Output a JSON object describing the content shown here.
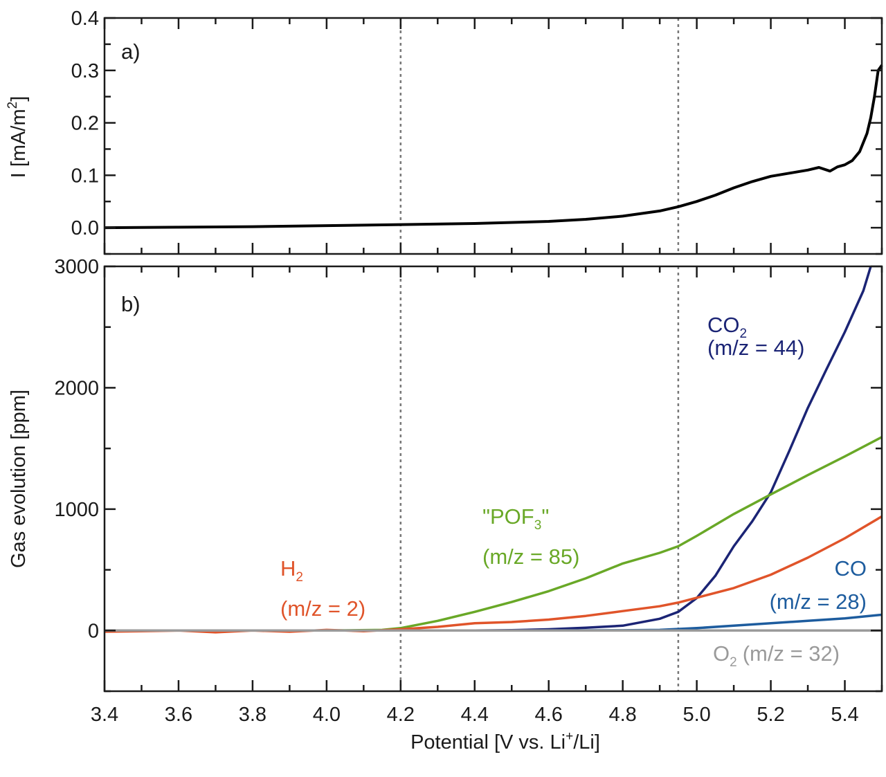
{
  "chart_data": [
    {
      "type": "line",
      "panel_label": "a)",
      "ylabel": "I [mA/m",
      "ylabel_sup": "2",
      "ylabel_end": "]",
      "xlim": [
        3.4,
        5.5
      ],
      "ylim": [
        -0.05,
        0.4
      ],
      "yticks": [
        "0.0",
        "0.1",
        "0.2",
        "0.3",
        "0.4"
      ],
      "ytick_values": [
        0,
        0.1,
        0.2,
        0.3,
        0.4
      ],
      "reference_lines_x": [
        4.2,
        4.95
      ],
      "series": [
        {
          "color": "#000000",
          "x": [
            3.4,
            3.6,
            3.8,
            4.0,
            4.2,
            4.4,
            4.6,
            4.7,
            4.8,
            4.9,
            4.95,
            5.0,
            5.05,
            5.1,
            5.15,
            5.2,
            5.25,
            5.3,
            5.33,
            5.36,
            5.38,
            5.4,
            5.42,
            5.44,
            5.46,
            5.47,
            5.48,
            5.49,
            5.5
          ],
          "y": [
            0.0,
            0.001,
            0.002,
            0.004,
            0.006,
            0.008,
            0.012,
            0.016,
            0.022,
            0.032,
            0.04,
            0.05,
            0.062,
            0.076,
            0.088,
            0.098,
            0.104,
            0.11,
            0.115,
            0.108,
            0.116,
            0.12,
            0.128,
            0.145,
            0.18,
            0.21,
            0.25,
            0.3,
            0.31
          ]
        }
      ]
    },
    {
      "type": "line",
      "panel_label": "b)",
      "ylabel": "Gas evolution [ppm]",
      "xlabel": "Potential [V vs. Li",
      "xlabel_sup": "+",
      "xlabel_end": "/Li]",
      "xlim": [
        3.4,
        5.5
      ],
      "ylim": [
        -500,
        3000
      ],
      "xticks": [
        "3.4",
        "3.6",
        "3.8",
        "4.0",
        "4.2",
        "4.4",
        "4.6",
        "4.8",
        "5.0",
        "5.2",
        "5.4"
      ],
      "xtick_values": [
        3.4,
        3.6,
        3.8,
        4.0,
        4.2,
        4.4,
        4.6,
        4.8,
        5.0,
        5.2,
        5.4
      ],
      "yticks": [
        "0",
        "1000",
        "2000",
        "3000"
      ],
      "ytick_values": [
        0,
        1000,
        2000,
        3000
      ],
      "reference_lines_x": [
        4.2,
        4.95
      ],
      "series": [
        {
          "name": "CO",
          "sub": "2",
          "mz": "(m/z = 44)",
          "color": "#1b2475",
          "x": [
            3.4,
            4.0,
            4.4,
            4.5,
            4.6,
            4.7,
            4.8,
            4.9,
            4.95,
            5.0,
            5.05,
            5.1,
            5.15,
            5.2,
            5.25,
            5.3,
            5.35,
            5.4,
            5.45,
            5.47
          ],
          "y": [
            0,
            0,
            0,
            3,
            10,
            23,
            40,
            97,
            154,
            267,
            450,
            694,
            900,
            1138,
            1480,
            1833,
            2150,
            2459,
            2800,
            3000
          ]
        },
        {
          "name": "\"POF",
          "sub": "3",
          "name_end": "\"",
          "mz": "(m/z = 85)",
          "color": "#69a827",
          "x": [
            3.4,
            4.0,
            4.15,
            4.2,
            4.3,
            4.4,
            4.5,
            4.6,
            4.7,
            4.8,
            4.9,
            4.95,
            5.0,
            5.1,
            5.2,
            5.3,
            5.4,
            5.5
          ],
          "y": [
            0,
            0,
            5,
            20,
            80,
            154,
            235,
            324,
            430,
            552,
            640,
            694,
            780,
            960,
            1121,
            1280,
            1434,
            1594
          ]
        },
        {
          "name": "H",
          "sub": "2",
          "mz": "(m/z = 2)",
          "color": "#e0542a",
          "x": [
            3.4,
            3.5,
            3.6,
            3.7,
            3.8,
            3.9,
            4.0,
            4.1,
            4.2,
            4.3,
            4.4,
            4.5,
            4.6,
            4.7,
            4.8,
            4.9,
            4.95,
            5.0,
            5.1,
            5.2,
            5.3,
            5.4,
            5.5
          ],
          "y": [
            -10,
            -5,
            0,
            -15,
            0,
            -10,
            5,
            -5,
            10,
            30,
            60,
            70,
            90,
            120,
            160,
            200,
            230,
            270,
            350,
            460,
            600,
            760,
            940
          ]
        },
        {
          "name": "CO",
          "mz": "(m/z = 28)",
          "color": "#1d5c9e",
          "x": [
            3.4,
            4.5,
            4.8,
            4.9,
            5.0,
            5.1,
            5.2,
            5.3,
            5.4,
            5.5
          ],
          "y": [
            0,
            0,
            2,
            5,
            20,
            40,
            60,
            80,
            100,
            130
          ]
        },
        {
          "name": "O",
          "sub": "2",
          "mz": "(m/z = 32)",
          "color": "#9a9a9a",
          "x": [
            3.4,
            5.5
          ],
          "y": [
            0,
            0
          ]
        }
      ]
    }
  ]
}
